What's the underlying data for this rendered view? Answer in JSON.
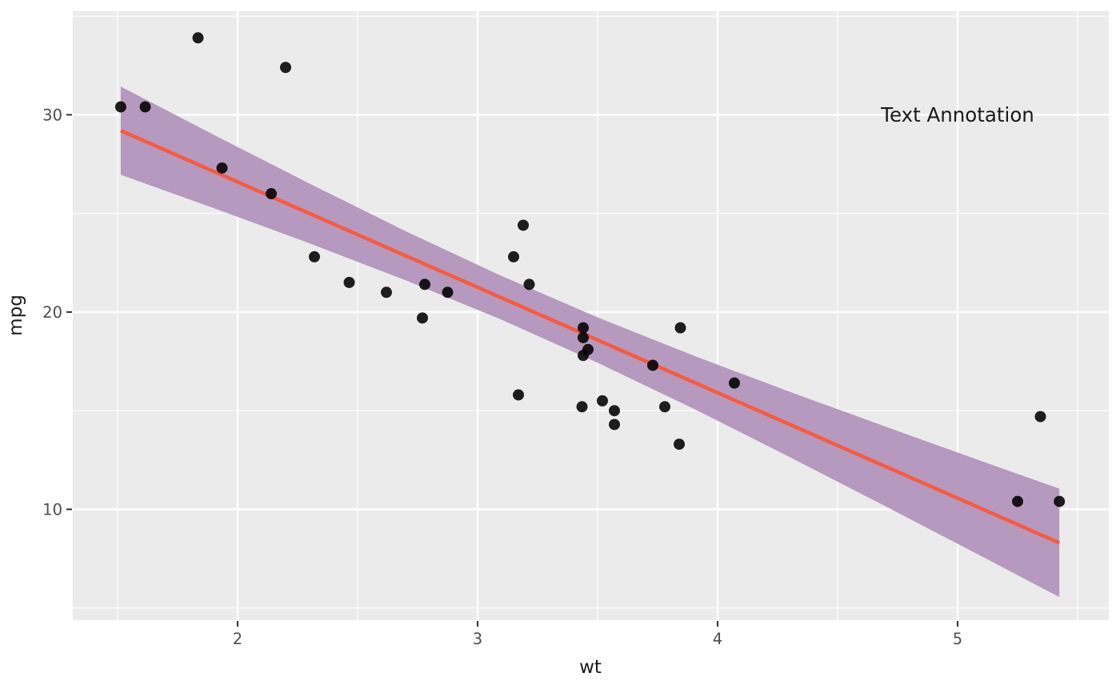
{
  "chart_data": {
    "type": "scatter",
    "title": "",
    "xlabel": "wt",
    "ylabel": "mpg",
    "legend": "none",
    "grid": "major+minor",
    "x_ticks": [
      2,
      3,
      4,
      5
    ],
    "x_minor": [
      1.5,
      2.5,
      3.5,
      4.5,
      5.5
    ],
    "y_ticks": [
      10,
      20,
      30
    ],
    "y_minor": [
      5,
      15,
      25,
      35
    ],
    "xlim": [
      1.3133,
      5.63
    ],
    "ylim": [
      4.38,
      35.25
    ],
    "annotation": {
      "label": "Text Annotation",
      "x": 5.0,
      "y": 30.0
    },
    "points": [
      [
        2.62,
        21.0
      ],
      [
        2.875,
        21.0
      ],
      [
        2.32,
        22.8
      ],
      [
        3.215,
        21.4
      ],
      [
        3.44,
        18.7
      ],
      [
        3.46,
        18.1
      ],
      [
        3.57,
        14.3
      ],
      [
        3.19,
        24.4
      ],
      [
        3.15,
        22.8
      ],
      [
        3.44,
        19.2
      ],
      [
        3.44,
        17.8
      ],
      [
        4.07,
        16.4
      ],
      [
        3.73,
        17.3
      ],
      [
        3.78,
        15.2
      ],
      [
        5.25,
        10.4
      ],
      [
        5.424,
        10.4
      ],
      [
        5.345,
        14.7
      ],
      [
        2.2,
        32.4
      ],
      [
        1.615,
        30.4
      ],
      [
        1.835,
        33.9
      ],
      [
        2.465,
        21.5
      ],
      [
        3.52,
        15.5
      ],
      [
        3.435,
        15.2
      ],
      [
        3.84,
        13.3
      ],
      [
        3.845,
        19.2
      ],
      [
        1.935,
        27.3
      ],
      [
        2.14,
        26.0
      ],
      [
        1.513,
        30.4
      ],
      [
        3.17,
        15.8
      ],
      [
        2.77,
        19.7
      ],
      [
        3.57,
        15.0
      ],
      [
        2.78,
        21.4
      ]
    ],
    "smooth": {
      "method": "lm",
      "intercept": 37.285,
      "slope": -5.344,
      "x_range": [
        1.513,
        5.424
      ],
      "ribbon": {
        "x": [
          1.513,
          1.9,
          2.3,
          2.7,
          3.1,
          3.5,
          3.9,
          4.3,
          4.7,
          5.1,
          5.424
        ],
        "upper": [
          31.43,
          28.99,
          26.51,
          24.1,
          21.83,
          19.73,
          17.79,
          15.96,
          14.19,
          12.44,
          11.05
        ],
        "lower": [
          26.96,
          25.27,
          23.48,
          21.61,
          19.61,
          17.43,
          15.1,
          12.65,
          10.15,
          7.62,
          5.55
        ]
      }
    },
    "colors": {
      "panel_bg": "#EBEBEB",
      "grid": "#FFFFFF",
      "point": "#000000",
      "point_opacity": 0.88,
      "line": "#FA5A3C",
      "ribbon_fill": "#B699BE",
      "tick_label": "#4D4D4D",
      "tick_mark": "#333333",
      "axis_title": "#1A1A1A"
    },
    "tick_label_size": 19.5,
    "point_radius": 7,
    "line_width": 4.5
  }
}
